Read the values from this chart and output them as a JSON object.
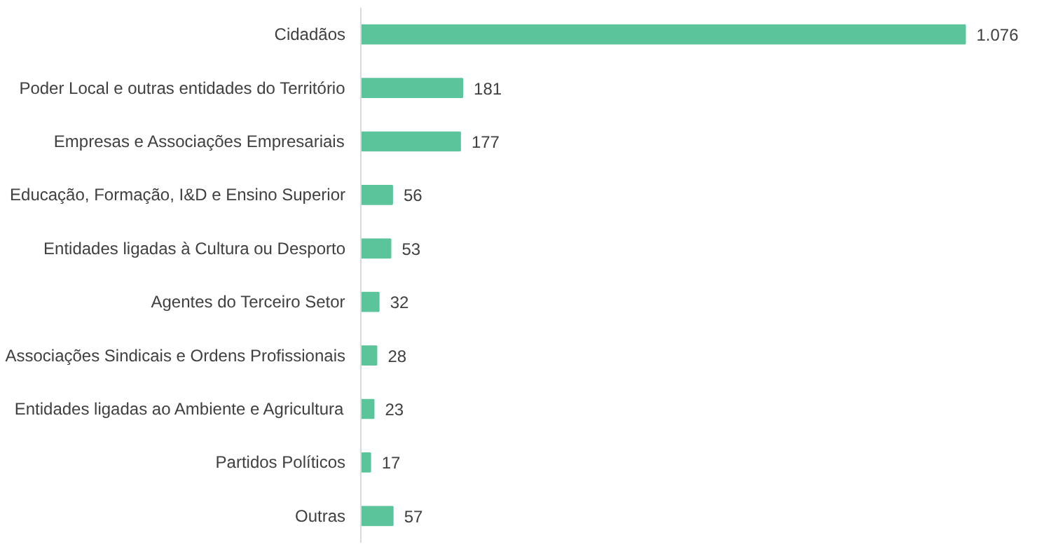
{
  "chart_data": {
    "type": "bar",
    "orientation": "horizontal",
    "categories": [
      "Cidadãos",
      "Poder Local e outras entidades do Território",
      "Empresas e Associações Empresariais",
      "Educação, Formação, I&D e Ensino Superior",
      "Entidades ligadas à Cultura ou Desporto",
      "Agentes do Terceiro Setor",
      "Associações Sindicais e Ordens Profissionais",
      "Entidades ligadas ao Ambiente e Agricultura",
      "Partidos Políticos",
      "Outras"
    ],
    "values": [
      1076,
      181,
      177,
      56,
      53,
      32,
      28,
      23,
      17,
      57
    ],
    "value_labels": [
      "1.076",
      "181",
      "177",
      "56",
      "53",
      "32",
      "28",
      "23",
      "17",
      "57"
    ],
    "color": "#5cc49a",
    "tick_labels": "y"
  }
}
